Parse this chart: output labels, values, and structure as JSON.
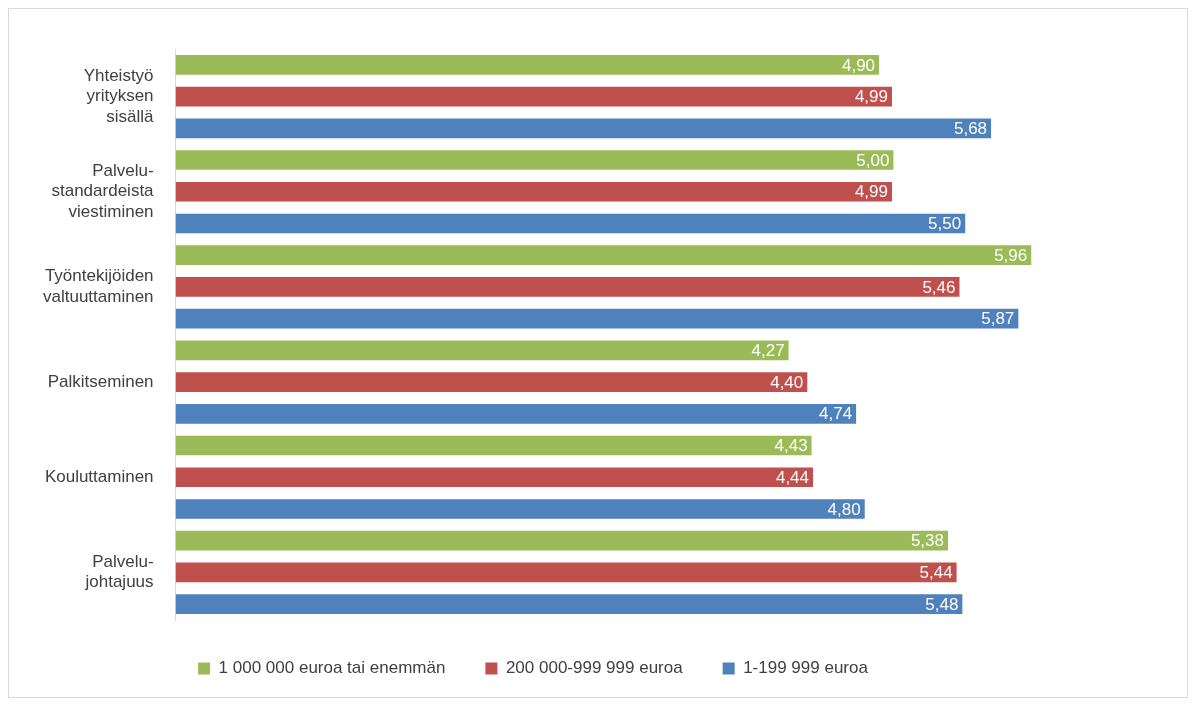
{
  "chart_data": {
    "type": "bar",
    "orientation": "horizontal",
    "categories": [
      "Yhteistyö yrityksen sisällä",
      "Palvelu-standardeista viestiminen",
      "Työntekijöiden valtuuttaminen",
      "Palkitseminen",
      "Kouluttaminen",
      "Palvelu-johtajuus"
    ],
    "series": [
      {
        "name": "1 000 000 euroa tai enemmän",
        "color": "#9bbb59",
        "values": [
          4.9,
          5.0,
          5.96,
          4.27,
          4.43,
          5.38
        ],
        "value_labels": [
          "4,90",
          "5,00",
          "5,96",
          "4,27",
          "4,43",
          "5,38"
        ]
      },
      {
        "name": "200 000-999 999 euroa",
        "color": "#c0504d",
        "values": [
          4.99,
          4.99,
          5.46,
          4.4,
          4.44,
          5.44
        ],
        "value_labels": [
          "4,99",
          "4,99",
          "5,46",
          "4,40",
          "4,44",
          "5,44"
        ]
      },
      {
        "name": "1-199 999 euroa",
        "color": "#4f81bd",
        "values": [
          5.68,
          5.5,
          5.87,
          4.74,
          4.8,
          5.48
        ],
        "value_labels": [
          "5,68",
          "5,50",
          "5,87",
          "4,74",
          "4,80",
          "5,48"
        ]
      }
    ],
    "grid": false,
    "legend": "bottom"
  }
}
